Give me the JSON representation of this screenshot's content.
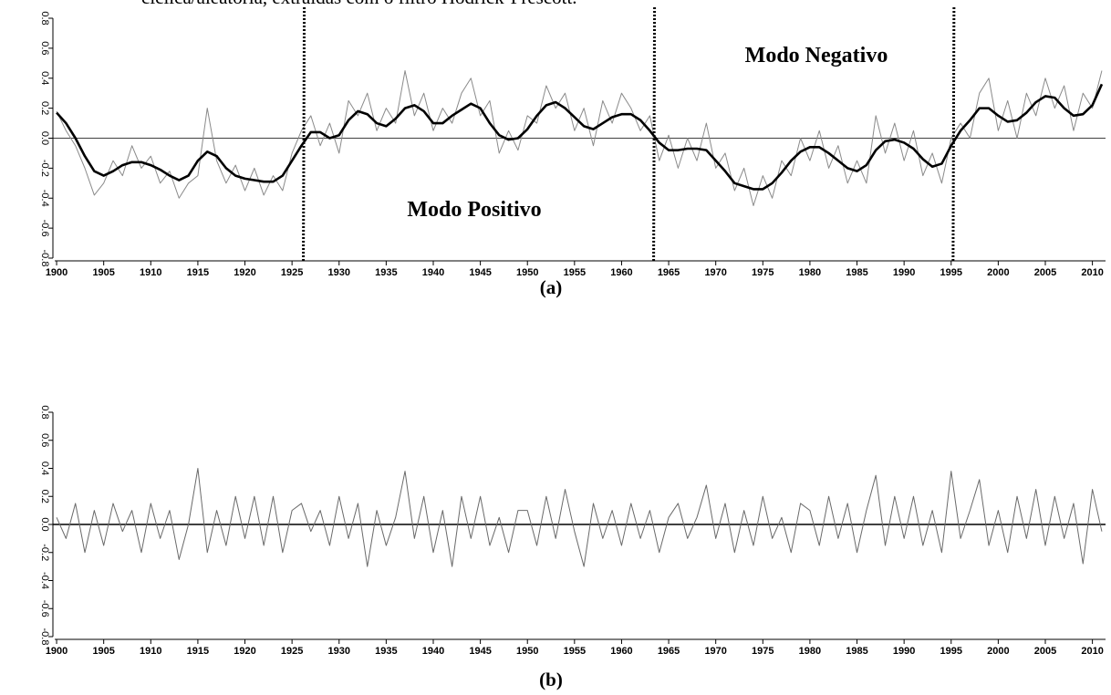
{
  "caption": "cíclica/aleatória, extraídas com o filtro Hodrick-Prescott.",
  "chart_data": [
    {
      "type": "line",
      "label": "(a)",
      "x": [
        1900,
        1901,
        1902,
        1903,
        1904,
        1905,
        1906,
        1907,
        1908,
        1909,
        1910,
        1911,
        1912,
        1913,
        1914,
        1915,
        1916,
        1917,
        1918,
        1919,
        1920,
        1921,
        1922,
        1923,
        1924,
        1925,
        1926,
        1927,
        1928,
        1929,
        1930,
        1931,
        1932,
        1933,
        1934,
        1935,
        1936,
        1937,
        1938,
        1939,
        1940,
        1941,
        1942,
        1943,
        1944,
        1945,
        1946,
        1947,
        1948,
        1949,
        1950,
        1951,
        1952,
        1953,
        1954,
        1955,
        1956,
        1957,
        1958,
        1959,
        1960,
        1961,
        1962,
        1963,
        1964,
        1965,
        1966,
        1967,
        1968,
        1969,
        1970,
        1971,
        1972,
        1973,
        1974,
        1975,
        1976,
        1977,
        1978,
        1979,
        1980,
        1981,
        1982,
        1983,
        1984,
        1985,
        1986,
        1987,
        1988,
        1989,
        1990,
        1991,
        1992,
        1993,
        1994,
        1995,
        1996,
        1997,
        1998,
        1999,
        2000,
        2001,
        2002,
        2003,
        2004,
        2005,
        2006,
        2007,
        2008,
        2009,
        2010,
        2011
      ],
      "series": [
        {
          "color": "#8a8a8a",
          "line_width": 1,
          "values": [
            0.18,
            0.05,
            -0.05,
            -0.2,
            -0.38,
            -0.3,
            -0.15,
            -0.25,
            -0.05,
            -0.2,
            -0.12,
            -0.3,
            -0.22,
            -0.4,
            -0.3,
            -0.25,
            0.2,
            -0.15,
            -0.3,
            -0.18,
            -0.35,
            -0.2,
            -0.38,
            -0.25,
            -0.35,
            -0.1,
            0.05,
            0.15,
            -0.05,
            0.1,
            -0.1,
            0.25,
            0.15,
            0.3,
            0.05,
            0.2,
            0.1,
            0.45,
            0.15,
            0.3,
            0.05,
            0.2,
            0.1,
            0.3,
            0.4,
            0.15,
            0.25,
            -0.1,
            0.05,
            -0.08,
            0.15,
            0.1,
            0.35,
            0.2,
            0.3,
            0.05,
            0.2,
            -0.05,
            0.25,
            0.1,
            0.3,
            0.2,
            0.05,
            0.15,
            -0.15,
            0.02,
            -0.2,
            0.0,
            -0.15,
            0.1,
            -0.2,
            -0.1,
            -0.35,
            -0.2,
            -0.45,
            -0.25,
            -0.4,
            -0.15,
            -0.25,
            0.0,
            -0.15,
            0.05,
            -0.2,
            -0.05,
            -0.3,
            -0.15,
            -0.3,
            0.15,
            -0.1,
            0.1,
            -0.15,
            0.05,
            -0.25,
            -0.1,
            -0.3,
            0.0,
            0.1,
            0.0,
            0.3,
            0.4,
            0.05,
            0.25,
            0.0,
            0.3,
            0.15,
            0.4,
            0.2,
            0.35,
            0.05,
            0.3,
            0.2,
            0.45
          ]
        },
        {
          "color": "#000000",
          "line_width": 2.6,
          "values": [
            0.17,
            0.1,
            0.0,
            -0.12,
            -0.22,
            -0.25,
            -0.22,
            -0.18,
            -0.16,
            -0.16,
            -0.18,
            -0.21,
            -0.25,
            -0.28,
            -0.25,
            -0.15,
            -0.09,
            -0.12,
            -0.2,
            -0.25,
            -0.27,
            -0.28,
            -0.29,
            -0.29,
            -0.25,
            -0.15,
            -0.05,
            0.04,
            0.04,
            0.0,
            0.02,
            0.12,
            0.18,
            0.16,
            0.1,
            0.08,
            0.13,
            0.2,
            0.22,
            0.18,
            0.1,
            0.1,
            0.15,
            0.19,
            0.23,
            0.2,
            0.1,
            0.02,
            -0.01,
            0.0,
            0.06,
            0.15,
            0.22,
            0.24,
            0.2,
            0.14,
            0.08,
            0.06,
            0.1,
            0.14,
            0.16,
            0.16,
            0.12,
            0.05,
            -0.03,
            -0.08,
            -0.08,
            -0.07,
            -0.07,
            -0.08,
            -0.15,
            -0.22,
            -0.3,
            -0.32,
            -0.34,
            -0.34,
            -0.3,
            -0.23,
            -0.15,
            -0.09,
            -0.06,
            -0.06,
            -0.1,
            -0.15,
            -0.2,
            -0.22,
            -0.18,
            -0.08,
            -0.02,
            -0.01,
            -0.03,
            -0.07,
            -0.14,
            -0.19,
            -0.17,
            -0.05,
            0.05,
            0.12,
            0.2,
            0.2,
            0.15,
            0.11,
            0.12,
            0.17,
            0.24,
            0.28,
            0.27,
            0.2,
            0.15,
            0.16,
            0.22,
            0.36
          ]
        }
      ],
      "vlines": [
        1926.3,
        1963.5,
        1995.3
      ],
      "annotations": [
        {
          "text": "Modo Positivo"
        },
        {
          "text": "Modo Negativo"
        }
      ],
      "xlim": [
        1899.8,
        2011.2
      ],
      "xticks": [
        1900,
        1905,
        1910,
        1915,
        1920,
        1925,
        1930,
        1935,
        1940,
        1945,
        1950,
        1955,
        1960,
        1965,
        1970,
        1975,
        1980,
        1985,
        1990,
        1995,
        2000,
        2005,
        2010
      ],
      "ylim": [
        -0.8,
        0.8
      ],
      "yticks": [
        -0.8,
        -0.6,
        -0.4,
        -0.2,
        {
          "value": 0,
          "label": "0.0"
        },
        0.2,
        0.4,
        0.6,
        0.8
      ]
    },
    {
      "type": "line",
      "label": "(b)",
      "x": [
        1900,
        1901,
        1902,
        1903,
        1904,
        1905,
        1906,
        1907,
        1908,
        1909,
        1910,
        1911,
        1912,
        1913,
        1914,
        1915,
        1916,
        1917,
        1918,
        1919,
        1920,
        1921,
        1922,
        1923,
        1924,
        1925,
        1926,
        1927,
        1928,
        1929,
        1930,
        1931,
        1932,
        1933,
        1934,
        1935,
        1936,
        1937,
        1938,
        1939,
        1940,
        1941,
        1942,
        1943,
        1944,
        1945,
        1946,
        1947,
        1948,
        1949,
        1950,
        1951,
        1952,
        1953,
        1954,
        1955,
        1956,
        1957,
        1958,
        1959,
        1960,
        1961,
        1962,
        1963,
        1964,
        1965,
        1966,
        1967,
        1968,
        1969,
        1970,
        1971,
        1972,
        1973,
        1974,
        1975,
        1976,
        1977,
        1978,
        1979,
        1980,
        1981,
        1982,
        1983,
        1984,
        1985,
        1986,
        1987,
        1988,
        1989,
        1990,
        1991,
        1992,
        1993,
        1994,
        1995,
        1996,
        1997,
        1998,
        1999,
        2000,
        2001,
        2002,
        2003,
        2004,
        2005,
        2006,
        2007,
        2008,
        2009,
        2010,
        2011
      ],
      "series": [
        {
          "color": "#6a6a6a",
          "line_width": 1,
          "values": [
            0.05,
            -0.1,
            0.15,
            -0.2,
            0.1,
            -0.15,
            0.15,
            -0.05,
            0.1,
            -0.2,
            0.15,
            -0.1,
            0.1,
            -0.25,
            0.0,
            0.4,
            -0.2,
            0.1,
            -0.15,
            0.2,
            -0.1,
            0.2,
            -0.15,
            0.2,
            -0.2,
            0.1,
            0.15,
            -0.05,
            0.1,
            -0.15,
            0.2,
            -0.1,
            0.15,
            -0.3,
            0.1,
            -0.15,
            0.05,
            0.38,
            -0.1,
            0.2,
            -0.2,
            0.1,
            -0.3,
            0.2,
            -0.1,
            0.2,
            -0.15,
            0.05,
            -0.2,
            0.1,
            0.1,
            -0.15,
            0.2,
            -0.1,
            0.25,
            -0.05,
            -0.3,
            0.15,
            -0.1,
            0.1,
            -0.15,
            0.15,
            -0.1,
            0.1,
            -0.2,
            0.05,
            0.15,
            -0.1,
            0.05,
            0.28,
            -0.1,
            0.15,
            -0.2,
            0.1,
            -0.15,
            0.2,
            -0.1,
            0.05,
            -0.2,
            0.15,
            0.1,
            -0.15,
            0.2,
            -0.1,
            0.15,
            -0.2,
            0.1,
            0.35,
            -0.15,
            0.2,
            -0.1,
            0.2,
            -0.15,
            0.1,
            -0.2,
            0.38,
            -0.1,
            0.1,
            0.32,
            -0.15,
            0.1,
            -0.2,
            0.2,
            -0.1,
            0.25,
            -0.15,
            0.2,
            -0.1,
            0.15,
            -0.28,
            0.25,
            -0.05
          ]
        }
      ],
      "xlim": [
        1899.8,
        2011.2
      ],
      "xticks": [
        1900,
        1905,
        1910,
        1915,
        1920,
        1925,
        1930,
        1935,
        1940,
        1945,
        1950,
        1955,
        1960,
        1965,
        1970,
        1975,
        1980,
        1985,
        1990,
        1995,
        2000,
        2005,
        2010
      ],
      "ylim": [
        -0.8,
        0.8
      ],
      "yticks": [
        -0.8,
        -0.6,
        -0.4,
        -0.2,
        {
          "value": 0,
          "label": "0.0"
        },
        0.2,
        0.4,
        0.6,
        0.8
      ]
    }
  ]
}
